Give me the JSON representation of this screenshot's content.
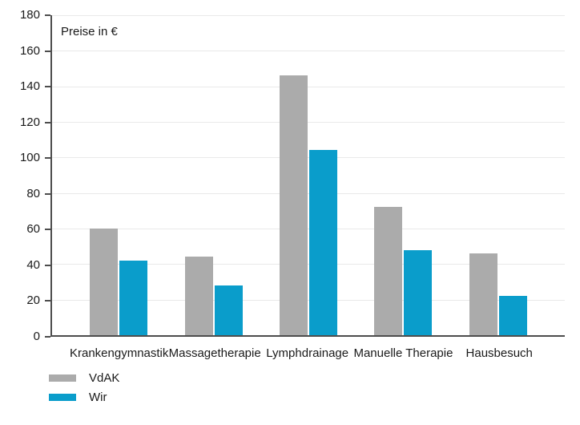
{
  "chart_data": {
    "type": "bar",
    "title": "Preise in €",
    "categories": [
      "Krankengymnastik",
      "Massagetherapie",
      "Lymphdrainage",
      "Manuelle Therapie",
      "Hausbesuch"
    ],
    "series": [
      {
        "name": "VdAK",
        "color": "#ABABAB",
        "values": [
          60,
          44,
          146,
          72,
          46
        ]
      },
      {
        "name": "Wir",
        "color": "#0A9DCB",
        "values": [
          42,
          28,
          104,
          48,
          22
        ]
      }
    ],
    "xlabel": "",
    "ylabel": "Preise in €",
    "ylim": [
      0,
      180
    ],
    "yticks": [
      0,
      20,
      40,
      60,
      80,
      100,
      120,
      140,
      160,
      180
    ],
    "grid": true,
    "legend_position": "bottom-left"
  }
}
